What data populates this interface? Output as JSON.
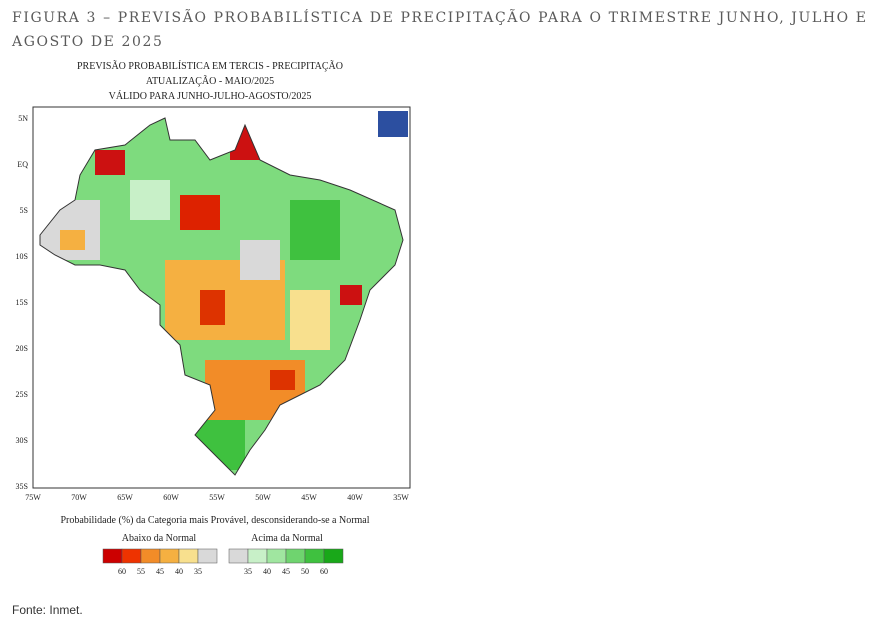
{
  "caption": "FIGURA 3 – PREVISÃO PROBABILÍSTICA DE PRECIPITAÇÃO PARA O TRIMESTRE JUNHO, JULHO E AGOSTO DE 2025",
  "map": {
    "title_lines": [
      "PREVISÃO PROBABILÍSTICA EM TERCIS - PRECIPITAÇÃO",
      "ATUALIZAÇÃO - MAIO/2025",
      "VÁLIDO PARA JUNHO-JULHO-AGOSTO/2025"
    ],
    "lat_labels": [
      "5N",
      "EQ",
      "5S",
      "10S",
      "15S",
      "20S",
      "25S",
      "30S",
      "35S"
    ],
    "lon_labels": [
      "75W",
      "70W",
      "65W",
      "60W",
      "55W",
      "50W",
      "45W",
      "40W",
      "35W"
    ],
    "legend_title": "Probabilidade (%) da Categoria mais Provável, desconsiderando-se a Normal",
    "below": {
      "label": "Abaixo da Normal",
      "levels": [
        "60",
        "55",
        "45",
        "40",
        "35"
      ]
    },
    "above": {
      "label": "Acima da Normal",
      "levels": [
        "35",
        "40",
        "45",
        "50",
        "60"
      ]
    }
  },
  "source": "Fonte: Inmet."
}
